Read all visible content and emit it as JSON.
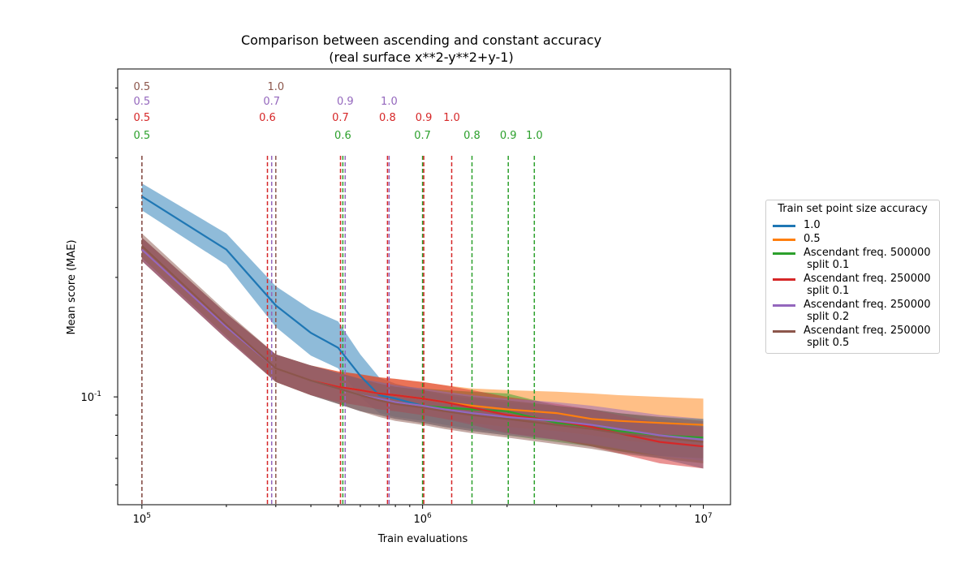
{
  "chart_data": {
    "type": "line",
    "title": "Comparison between ascending and constant accuracy",
    "subtitle": "(real surface x**2-y**2+y-1)",
    "xlabel": "Train evaluations",
    "ylabel": "Mean score (MAE)",
    "x_scale": "log",
    "y_scale": "log",
    "xlim": [
      82000,
      12500000
    ],
    "ylim": [
      0.0535,
      0.67
    ],
    "x_ticks": [
      {
        "value": 100000,
        "label": "10^5"
      },
      {
        "value": 1000000,
        "label": "10^6"
      },
      {
        "value": 10000000,
        "label": "10^7"
      }
    ],
    "y_ticks": [
      {
        "value": 0.1,
        "label": "10^-1"
      }
    ],
    "legend": {
      "title": "Train set point size accuracy",
      "placement": "outside-right"
    },
    "series": [
      {
        "name": "1.0",
        "color": "#1f77b4",
        "x": [
          100000,
          200000,
          300000,
          400000,
          500000,
          600000,
          700000,
          800000,
          1000000,
          1200000,
          1500000,
          2000000,
          3000000,
          4000000,
          5000000,
          7000000,
          10000000
        ],
        "y": [
          0.32,
          0.235,
          0.17,
          0.145,
          0.133,
          0.113,
          0.101,
          0.099,
          0.095,
          0.093,
          0.091,
          0.089,
          0.087,
          0.085,
          0.083,
          0.08,
          0.078
        ],
        "lower": [
          0.295,
          0.215,
          0.15,
          0.127,
          0.118,
          0.1,
          0.091,
          0.089,
          0.087,
          0.085,
          0.083,
          0.081,
          0.078,
          0.075,
          0.073,
          0.07,
          0.066
        ],
        "upper": [
          0.345,
          0.258,
          0.19,
          0.166,
          0.155,
          0.128,
          0.112,
          0.108,
          0.104,
          0.101,
          0.099,
          0.097,
          0.095,
          0.093,
          0.091,
          0.088,
          0.085
        ]
      },
      {
        "name": "0.5",
        "color": "#ff7f0e",
        "x": [
          100000,
          200000,
          300000,
          400000,
          500000,
          600000,
          700000,
          800000,
          1000000,
          1200000,
          1500000,
          2000000,
          3000000,
          4000000,
          5000000,
          7000000,
          10000000
        ],
        "y": [
          0.235,
          0.15,
          0.118,
          0.11,
          0.106,
          0.104,
          0.102,
          0.101,
          0.099,
          0.097,
          0.095,
          0.093,
          0.091,
          0.088,
          0.087,
          0.086,
          0.085
        ],
        "lower": [
          0.22,
          0.14,
          0.109,
          0.101,
          0.097,
          0.095,
          0.093,
          0.092,
          0.09,
          0.088,
          0.086,
          0.084,
          0.082,
          0.08,
          0.078,
          0.076,
          0.075
        ],
        "upper": [
          0.252,
          0.162,
          0.128,
          0.12,
          0.116,
          0.114,
          0.112,
          0.111,
          0.109,
          0.107,
          0.105,
          0.104,
          0.103,
          0.102,
          0.101,
          0.1,
          0.099
        ]
      },
      {
        "name": "Ascendant freq. 500000\n split 0.1",
        "color": "#2ca02c",
        "x": [
          100000,
          200000,
          300000,
          400000,
          500000,
          600000,
          700000,
          800000,
          1000000,
          1200000,
          1500000,
          2000000,
          3000000,
          4000000,
          5000000,
          7000000,
          10000000
        ],
        "y": [
          0.235,
          0.15,
          0.118,
          0.11,
          0.105,
          0.101,
          0.099,
          0.097,
          0.095,
          0.094,
          0.093,
          0.092,
          0.086,
          0.084,
          0.082,
          0.08,
          0.079
        ],
        "lower": [
          0.22,
          0.14,
          0.109,
          0.101,
          0.096,
          0.092,
          0.09,
          0.088,
          0.086,
          0.084,
          0.082,
          0.08,
          0.077,
          0.075,
          0.073,
          0.071,
          0.07
        ],
        "upper": [
          0.252,
          0.162,
          0.128,
          0.12,
          0.115,
          0.111,
          0.109,
          0.107,
          0.105,
          0.104,
          0.103,
          0.102,
          0.095,
          0.093,
          0.091,
          0.089,
          0.088
        ]
      },
      {
        "name": "Ascendant freq. 250000\n split 0.1",
        "color": "#d62728",
        "x": [
          100000,
          200000,
          300000,
          400000,
          500000,
          600000,
          700000,
          800000,
          1000000,
          1200000,
          1500000,
          2000000,
          3000000,
          4000000,
          5000000,
          7000000,
          10000000
        ],
        "y": [
          0.235,
          0.15,
          0.118,
          0.11,
          0.106,
          0.104,
          0.102,
          0.101,
          0.099,
          0.097,
          0.094,
          0.09,
          0.087,
          0.084,
          0.081,
          0.077,
          0.075
        ],
        "lower": [
          0.22,
          0.14,
          0.109,
          0.101,
          0.097,
          0.095,
          0.093,
          0.092,
          0.09,
          0.088,
          0.085,
          0.081,
          0.078,
          0.075,
          0.072,
          0.068,
          0.066
        ],
        "upper": [
          0.252,
          0.162,
          0.128,
          0.12,
          0.116,
          0.114,
          0.112,
          0.111,
          0.109,
          0.107,
          0.104,
          0.1,
          0.096,
          0.093,
          0.09,
          0.086,
          0.084
        ]
      },
      {
        "name": "Ascendant freq. 250000\n split 0.2",
        "color": "#9467bd",
        "x": [
          100000,
          200000,
          300000,
          400000,
          500000,
          600000,
          700000,
          800000,
          1000000,
          1200000,
          1500000,
          2000000,
          3000000,
          4000000,
          5000000,
          7000000,
          10000000
        ],
        "y": [
          0.235,
          0.15,
          0.118,
          0.11,
          0.105,
          0.101,
          0.099,
          0.097,
          0.095,
          0.093,
          0.091,
          0.089,
          0.087,
          0.085,
          0.083,
          0.08,
          0.078
        ],
        "lower": [
          0.22,
          0.14,
          0.109,
          0.101,
          0.096,
          0.092,
          0.09,
          0.088,
          0.086,
          0.084,
          0.082,
          0.08,
          0.078,
          0.076,
          0.074,
          0.071,
          0.069
        ],
        "upper": [
          0.252,
          0.162,
          0.128,
          0.12,
          0.115,
          0.111,
          0.109,
          0.107,
          0.105,
          0.103,
          0.101,
          0.099,
          0.097,
          0.095,
          0.093,
          0.09,
          0.088
        ]
      },
      {
        "name": "Ascendant freq. 250000\n split 0.5",
        "color": "#8c564b",
        "x": [
          100000,
          200000,
          300000,
          400000,
          500000,
          600000,
          700000,
          800000,
          1000000,
          1200000,
          1500000,
          2000000,
          3000000,
          4000000,
          5000000,
          7000000,
          10000000
        ],
        "y": [
          0.24,
          0.152,
          0.118,
          0.11,
          0.105,
          0.101,
          0.098,
          0.096,
          0.094,
          0.092,
          0.09,
          0.088,
          0.085,
          0.083,
          0.081,
          0.079,
          0.077
        ],
        "lower": [
          0.224,
          0.142,
          0.109,
          0.101,
          0.096,
          0.092,
          0.089,
          0.087,
          0.085,
          0.083,
          0.081,
          0.079,
          0.076,
          0.074,
          0.072,
          0.07,
          0.068
        ],
        "upper": [
          0.258,
          0.164,
          0.128,
          0.12,
          0.115,
          0.111,
          0.108,
          0.106,
          0.104,
          0.102,
          0.1,
          0.098,
          0.095,
          0.093,
          0.091,
          0.089,
          0.087
        ]
      }
    ],
    "vlines": [
      {
        "color": "#2ca02c",
        "label_row": 4,
        "marks": [
          {
            "x": 100000,
            "label": "0.5"
          },
          {
            "x": 520000,
            "label": "0.6"
          },
          {
            "x": 1000000,
            "label": "0.7"
          },
          {
            "x": 1500000,
            "label": "0.8"
          },
          {
            "x": 2020000,
            "label": "0.9"
          },
          {
            "x": 2500000,
            "label": "1.0"
          }
        ]
      },
      {
        "color": "#d62728",
        "label_row": 3,
        "marks": [
          {
            "x": 100000,
            "label": "0.5"
          },
          {
            "x": 280000,
            "label": "0.6"
          },
          {
            "x": 510000,
            "label": "0.7"
          },
          {
            "x": 750000,
            "label": "0.8"
          },
          {
            "x": 1010000,
            "label": "0.9"
          },
          {
            "x": 1270000,
            "label": "1.0"
          }
        ]
      },
      {
        "color": "#9467bd",
        "label_row": 2,
        "marks": [
          {
            "x": 100000,
            "label": "0.5"
          },
          {
            "x": 290000,
            "label": "0.7"
          },
          {
            "x": 530000,
            "label": "0.9"
          },
          {
            "x": 760000,
            "label": "1.0"
          }
        ]
      },
      {
        "color": "#8c564b",
        "label_row": 1,
        "marks": [
          {
            "x": 100000,
            "label": "0.5"
          },
          {
            "x": 300000,
            "label": "1.0"
          }
        ]
      }
    ]
  }
}
